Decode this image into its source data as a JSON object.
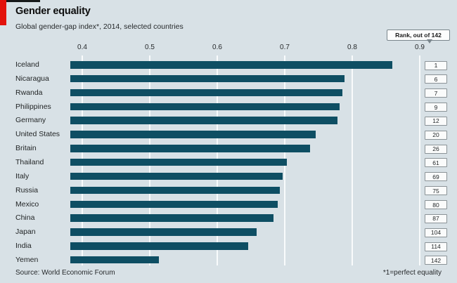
{
  "header": {
    "title": "Gender equality",
    "subtitle": "Global gender-gap index*, 2014, selected countries"
  },
  "callout": {
    "label": "Rank, out of 142"
  },
  "footer": {
    "source": "Source: World Economic Forum",
    "footnote": "*1=perfect equality"
  },
  "colors": {
    "background": "#d8e1e6",
    "bar": "#0e4e63",
    "accent_red": "#e3120b",
    "gridline": "#ffffff",
    "rank_box_border": "#8a9296"
  },
  "chart_data": {
    "type": "bar",
    "orientation": "horizontal",
    "title": "Gender equality",
    "subtitle": "Global gender-gap index*, 2014, selected countries",
    "categories": [
      "Iceland",
      "Nicaragua",
      "Rwanda",
      "Philippines",
      "Germany",
      "United States",
      "Britain",
      "Thailand",
      "Italy",
      "Russia",
      "Mexico",
      "China",
      "Japan",
      "India",
      "Yemen"
    ],
    "values": [
      0.859,
      0.789,
      0.785,
      0.781,
      0.778,
      0.746,
      0.738,
      0.703,
      0.697,
      0.693,
      0.69,
      0.683,
      0.658,
      0.646,
      0.514
    ],
    "ranks": [
      1,
      6,
      7,
      9,
      12,
      20,
      26,
      61,
      69,
      75,
      80,
      87,
      104,
      114,
      142
    ],
    "rank_column_label": "Rank, out of 142",
    "xticks": [
      0.4,
      0.5,
      0.6,
      0.7,
      0.8,
      0.9
    ],
    "xlim": [
      0.382,
      0.94
    ],
    "grid": true,
    "legend": "none",
    "xlabel": "",
    "ylabel": ""
  }
}
